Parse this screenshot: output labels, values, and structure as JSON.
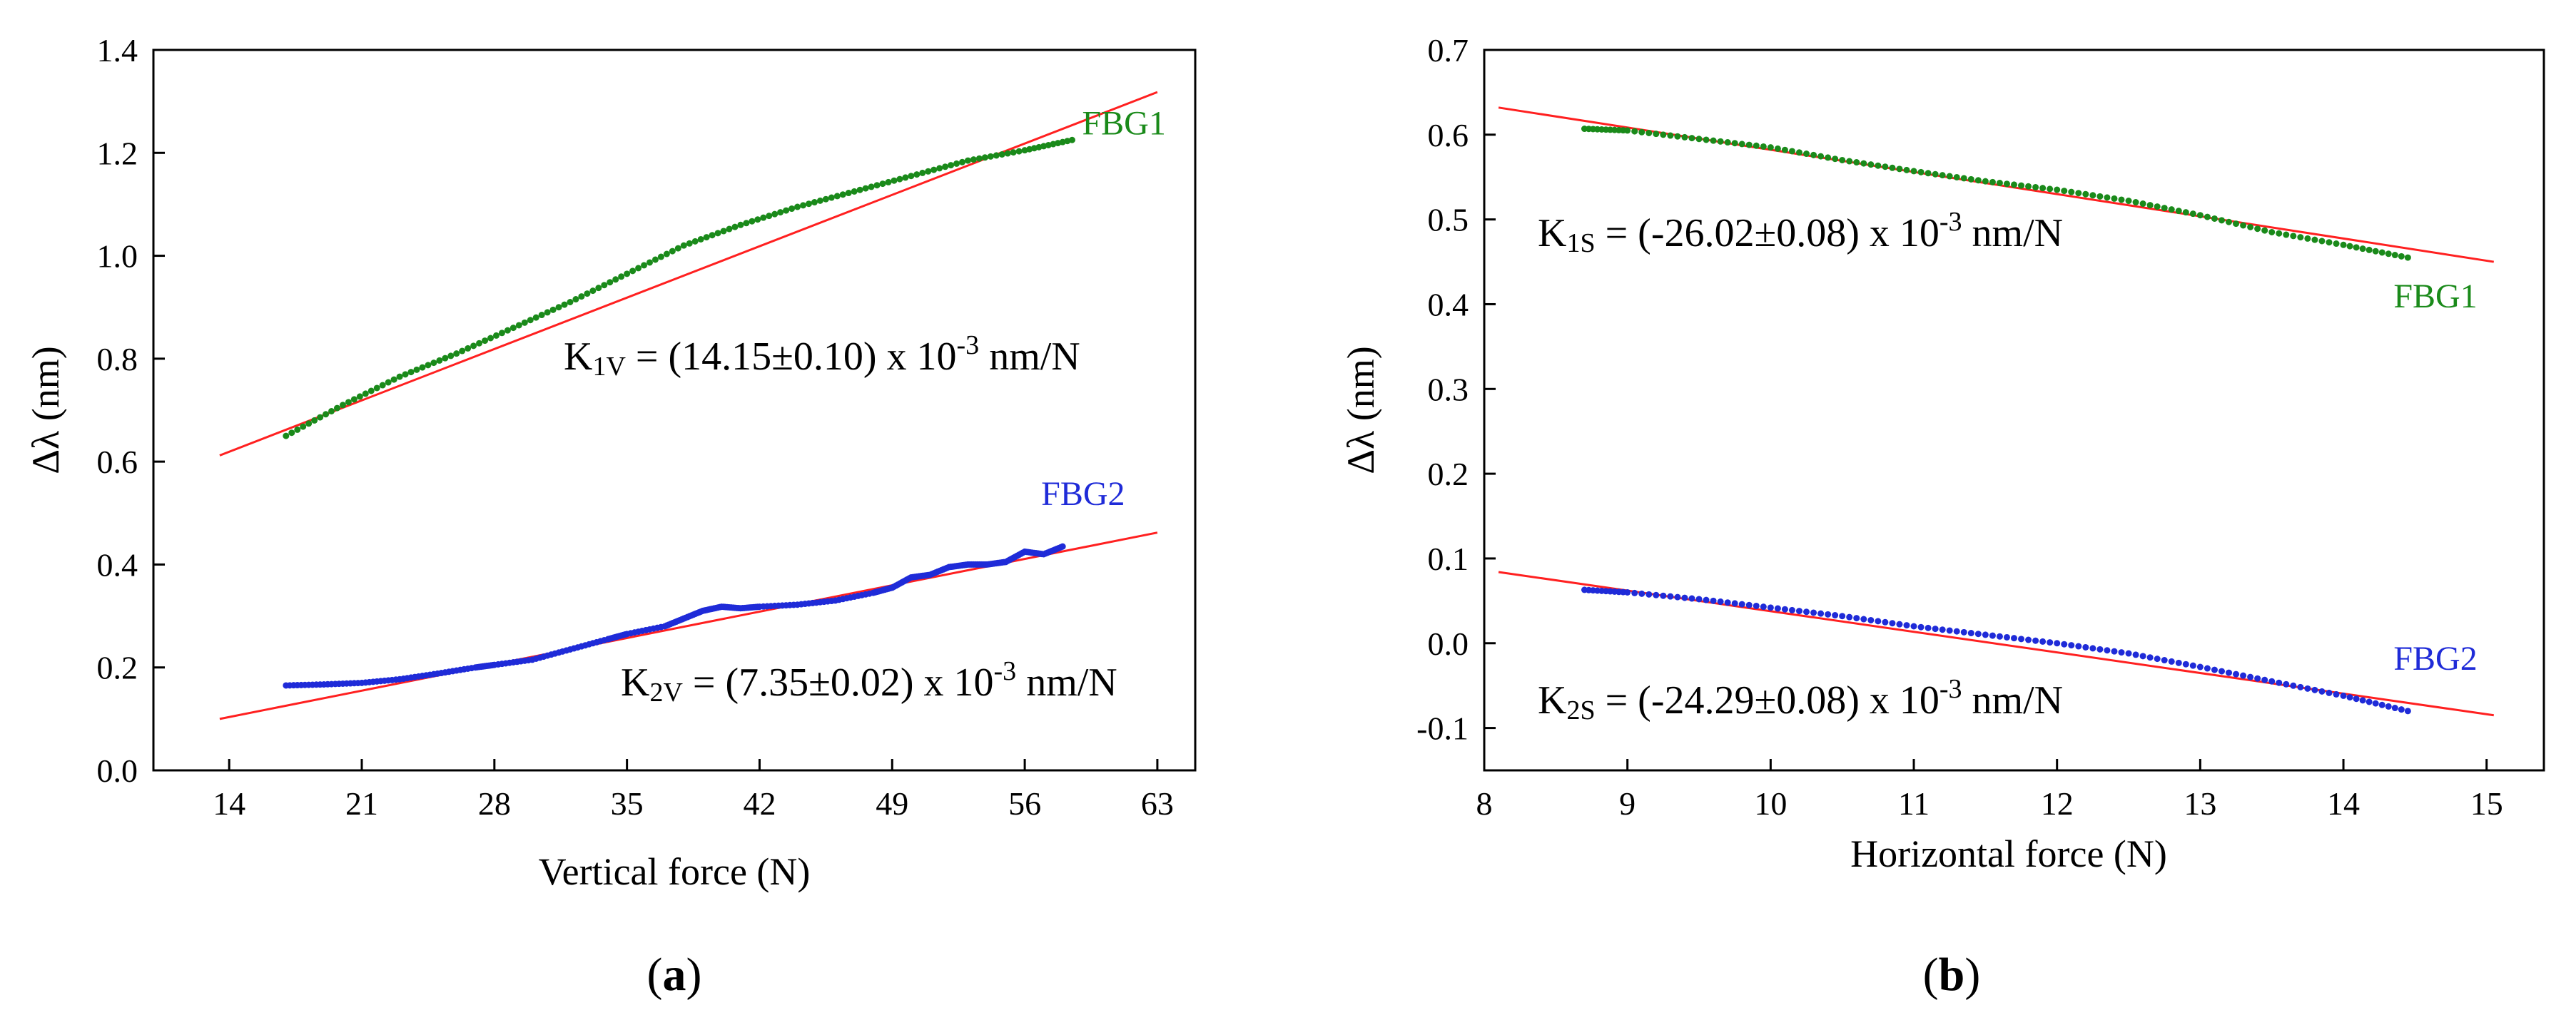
{
  "chart_data": [
    {
      "type": "scatter",
      "panel_label": "(a)",
      "panel_label_bold": "a",
      "xlabel": "Vertical force (N)",
      "ylabel": "Δλ (nm)",
      "xlim": [
        10,
        65
      ],
      "ylim": [
        0,
        1.4
      ],
      "xticks": [
        14,
        21,
        28,
        35,
        42,
        49,
        56,
        63
      ],
      "yticks": [
        0.0,
        0.2,
        0.4,
        0.6,
        0.8,
        1.0,
        1.2,
        1.4
      ],
      "ytick_labels": [
        "0.0",
        "0.2",
        "0.4",
        "0.6",
        "0.8",
        "1.0",
        "1.2",
        "1.4"
      ],
      "series": [
        {
          "name": "FBG1",
          "color": "#1a8a1a",
          "label_position": "end",
          "x": [
            17,
            20,
            23,
            26,
            29,
            32,
            35,
            38,
            41,
            44,
            47,
            50,
            53,
            56,
            58.5
          ],
          "y": [
            0.65,
            0.71,
            0.765,
            0.81,
            0.86,
            0.91,
            0.965,
            1.02,
            1.06,
            1.095,
            1.125,
            1.155,
            1.185,
            1.205,
            1.225
          ]
        },
        {
          "name": "FBG2",
          "color": "#1f2bd8",
          "label_position": "end",
          "x": [
            17,
            19,
            21,
            23,
            25,
            27,
            28,
            30,
            32,
            34,
            35,
            37,
            38,
            39,
            40,
            41,
            42,
            44,
            46,
            48,
            49,
            50,
            51,
            52,
            53,
            54,
            55,
            56,
            57,
            58
          ],
          "y": [
            0.165,
            0.167,
            0.17,
            0.177,
            0.188,
            0.2,
            0.205,
            0.215,
            0.235,
            0.255,
            0.265,
            0.28,
            0.295,
            0.31,
            0.318,
            0.315,
            0.318,
            0.322,
            0.33,
            0.345,
            0.355,
            0.375,
            0.38,
            0.395,
            0.4,
            0.4,
            0.405,
            0.425,
            0.42,
            0.435
          ]
        }
      ],
      "fits": [
        {
          "name": "FBG1 fit",
          "color": "#ff2020",
          "x": [
            13.5,
            63
          ],
          "y": [
            0.612,
            1.318
          ]
        },
        {
          "name": "FBG2 fit",
          "color": "#ff2020",
          "x": [
            13.5,
            63
          ],
          "y": [
            0.1,
            0.462
          ]
        }
      ],
      "annotations": [
        {
          "id": "k1v",
          "prefix": "K",
          "sub": "1V",
          "middle": " = (14.15±0.10) x 10",
          "sup": "-3",
          "suffix": " nm/N"
        },
        {
          "id": "k2v",
          "prefix": "K",
          "sub": "2V",
          "middle": " = (7.35±0.02) x 10",
          "sup": "-3",
          "suffix": " nm/N"
        }
      ]
    },
    {
      "type": "scatter",
      "panel_label": "(b)",
      "panel_label_bold": "b",
      "xlabel": "Horizontal force (N)",
      "ylabel": "Δλ (nm)",
      "xlim": [
        8,
        15.4
      ],
      "ylim": [
        -0.15,
        0.7
      ],
      "xticks": [
        8,
        9,
        10,
        11,
        12,
        13,
        14,
        15
      ],
      "yticks": [
        -0.1,
        0.0,
        0.1,
        0.2,
        0.3,
        0.4,
        0.5,
        0.6,
        0.7
      ],
      "ytick_labels": [
        "-0.1",
        "0.0",
        "0.1",
        "0.2",
        "0.3",
        "0.4",
        "0.5",
        "0.6",
        "0.7"
      ],
      "series": [
        {
          "name": "FBG1",
          "color": "#1a8a1a",
          "label_position": "end",
          "x": [
            8.7,
            9.0,
            9.5,
            10.0,
            10.5,
            11.0,
            11.5,
            12.0,
            12.5,
            13.0,
            13.5,
            14.0,
            14.45
          ],
          "y": [
            0.607,
            0.605,
            0.595,
            0.585,
            0.57,
            0.557,
            0.545,
            0.535,
            0.522,
            0.505,
            0.485,
            0.47,
            0.455
          ]
        },
        {
          "name": "FBG2",
          "color": "#1f2bd8",
          "label_position": "end",
          "x": [
            8.7,
            9.0,
            9.5,
            10.0,
            10.5,
            11.0,
            11.5,
            12.0,
            12.5,
            13.0,
            13.5,
            14.0,
            14.45
          ],
          "y": [
            0.063,
            0.06,
            0.052,
            0.042,
            0.032,
            0.02,
            0.01,
            0.0,
            -0.012,
            -0.028,
            -0.045,
            -0.062,
            -0.08
          ]
        }
      ],
      "fits": [
        {
          "name": "FBG1 fit",
          "color": "#ff2020",
          "x": [
            8.1,
            15.05
          ],
          "y": [
            0.632,
            0.45
          ]
        },
        {
          "name": "FBG2 fit",
          "color": "#ff2020",
          "x": [
            8.1,
            15.05
          ],
          "y": [
            0.084,
            -0.085
          ]
        }
      ],
      "annotations": [
        {
          "id": "k1s",
          "prefix": "K",
          "sub": "1S",
          "middle": " = (-26.02±0.08) x 10",
          "sup": "-3",
          "suffix": " nm/N"
        },
        {
          "id": "k2s",
          "prefix": "K",
          "sub": "2S",
          "middle": " = (-24.29±0.08) x 10",
          "sup": "-3",
          "suffix": " nm/N"
        }
      ]
    }
  ]
}
